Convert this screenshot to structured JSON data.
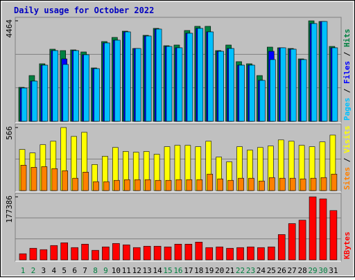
{
  "chart_data": [
    {
      "type": "bar",
      "title": "Daily usage for October 2022",
      "ylim": [
        0,
        4464
      ],
      "yticks": [
        4464
      ],
      "grid_divisions": 3,
      "legend_separator": " / ",
      "series": [
        {
          "name": "Hits",
          "color": "#008040",
          "values": [
            1509,
            2032,
            2556,
            3203,
            3141,
            3172,
            3080,
            2371,
            3542,
            3726,
            4003,
            3234,
            3819,
            4127,
            3357,
            3388,
            4034,
            4219,
            4219,
            3141,
            3388,
            2649,
            2556,
            2032,
            3295,
            3265,
            3234,
            2772,
            4464,
            4434,
            3326
          ]
        },
        {
          "name": "Files",
          "color": "#0000ff",
          "values": [
            1478,
            1786,
            2494,
            3141,
            2772,
            3141,
            2957,
            2340,
            3480,
            3603,
            3972,
            3234,
            3788,
            4096,
            3326,
            3265,
            3911,
            4127,
            3972,
            3110,
            3234,
            2494,
            2494,
            1817,
            3110,
            3265,
            3203,
            2741,
            4343,
            4434,
            3265
          ]
        },
        {
          "name": "Pages",
          "color": "#00c0ff",
          "values": [
            1478,
            1786,
            2494,
            3141,
            2525,
            3141,
            2957,
            2340,
            3480,
            3603,
            3972,
            3234,
            3788,
            4096,
            3326,
            3265,
            3911,
            4127,
            3972,
            3110,
            3234,
            2494,
            2494,
            1817,
            2741,
            3265,
            3203,
            2741,
            4343,
            4434,
            3265
          ]
        }
      ]
    },
    {
      "type": "bar",
      "ylim": [
        0,
        566
      ],
      "yticks": [
        566
      ],
      "grid_divisions": 2,
      "legend_separator": " / ",
      "series": [
        {
          "name": "Visits",
          "color": "#ffff00",
          "values": [
            369,
            338,
            412,
            443,
            566,
            486,
            523,
            234,
            308,
            387,
            351,
            344,
            351,
            326,
            394,
            406,
            406,
            394,
            443,
            301,
            258,
            394,
            363,
            387,
            400,
            455,
            443,
            406,
            394,
            437,
            498
          ]
        },
        {
          "name": "Sites",
          "color": "#ff8000",
          "values": [
            228,
            209,
            215,
            197,
            178,
            111,
            166,
            80,
            80,
            92,
            98,
            98,
            98,
            92,
            92,
            98,
            98,
            98,
            148,
            105,
            92,
            111,
            111,
            86,
            117,
            111,
            111,
            105,
            111,
            117,
            148
          ]
        }
      ]
    },
    {
      "type": "bar",
      "ylim": [
        0,
        177386
      ],
      "yticks": [
        177386
      ],
      "grid_divisions": 3,
      "categories": [
        "1",
        "2",
        "3",
        "4",
        "5",
        "6",
        "7",
        "8",
        "9",
        "10",
        "11",
        "12",
        "13",
        "14",
        "15",
        "16",
        "17",
        "18",
        "19",
        "20",
        "21",
        "22",
        "23",
        "24",
        "25",
        "26",
        "27",
        "28",
        "29",
        "30",
        "31"
      ],
      "category_colors": [
        "#008040",
        "#008040",
        "#000000",
        "#000000",
        "#000000",
        "#000000",
        "#000000",
        "#008040",
        "#008040",
        "#000000",
        "#000000",
        "#000000",
        "#000000",
        "#000000",
        "#008040",
        "#008040",
        "#000000",
        "#000000",
        "#000000",
        "#000000",
        "#000000",
        "#008040",
        "#008040",
        "#000000",
        "#000000",
        "#000000",
        "#000000",
        "#000000",
        "#008040",
        "#008040",
        "#000000"
      ],
      "series": [
        {
          "name": "KBytes",
          "color": "#ff0000",
          "values": [
            17352,
            32776,
            28920,
            40488,
            48200,
            34704,
            44344,
            26992,
            36632,
            46272,
            42416,
            34704,
            38560,
            38560,
            36632,
            44344,
            44344,
            50128,
            34704,
            36632,
            32776,
            34704,
            36632,
            34704,
            36632,
            71336,
            102184,
            111824,
            177386,
            171602,
            138816
          ]
        }
      ]
    }
  ]
}
